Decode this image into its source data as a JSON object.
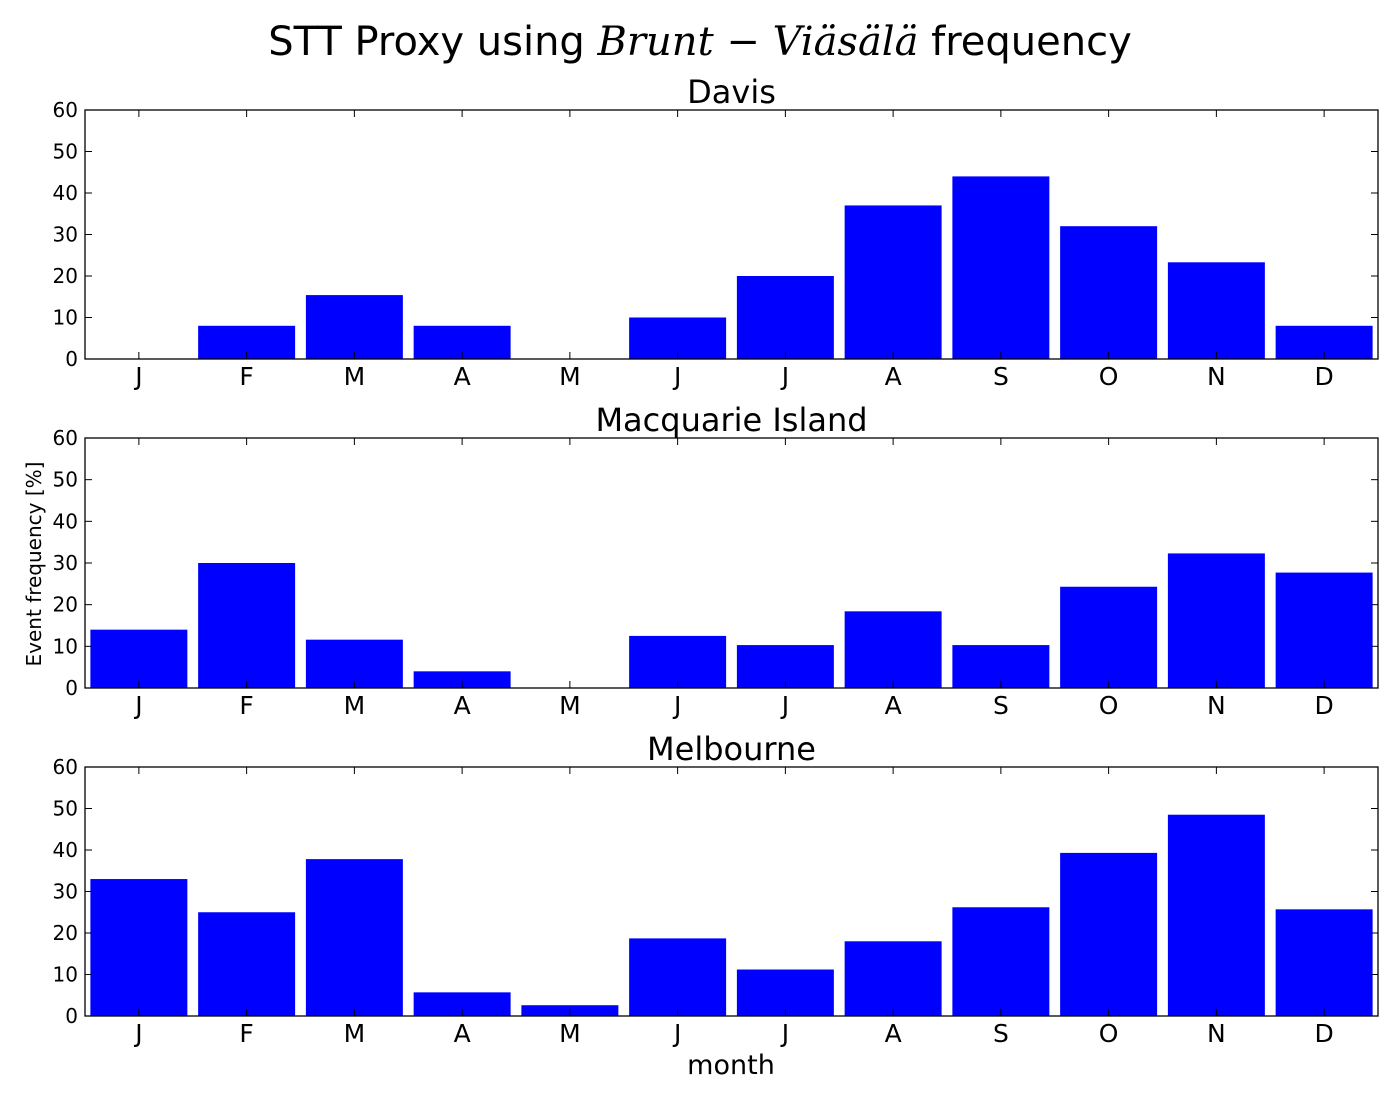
{
  "title_prefix": "STT Proxy using ",
  "title_math": "Brunt − Viäsälä",
  "title_suffix": " frequency",
  "xlabel": "month",
  "ylabel": "Event frequency [%]",
  "bar_color": "#0000ff",
  "chart_data": [
    {
      "type": "bar",
      "title": "Davis",
      "categories": [
        "J",
        "F",
        "M",
        "A",
        "M",
        "J",
        "J",
        "A",
        "S",
        "O",
        "N",
        "D"
      ],
      "values": [
        0,
        8,
        15.4,
        8,
        0,
        10,
        20,
        37,
        44,
        32,
        23.3,
        8
      ],
      "ylim": [
        0,
        60
      ],
      "yticks": [
        0,
        10,
        20,
        30,
        40,
        50,
        60
      ]
    },
    {
      "type": "bar",
      "title": "Macquarie Island",
      "categories": [
        "J",
        "F",
        "M",
        "A",
        "M",
        "J",
        "J",
        "A",
        "S",
        "O",
        "N",
        "D"
      ],
      "values": [
        14,
        30,
        11.6,
        4,
        0,
        12.5,
        10.3,
        18.4,
        10.3,
        24.3,
        32.3,
        27.7
      ],
      "ylim": [
        0,
        60
      ],
      "yticks": [
        0,
        10,
        20,
        30,
        40,
        50,
        60
      ]
    },
    {
      "type": "bar",
      "title": "Melbourne",
      "categories": [
        "J",
        "F",
        "M",
        "A",
        "M",
        "J",
        "J",
        "A",
        "S",
        "O",
        "N",
        "D"
      ],
      "values": [
        33,
        25,
        37.8,
        5.7,
        2.6,
        18.7,
        11.2,
        18,
        26.2,
        39.3,
        48.5,
        25.7
      ],
      "ylim": [
        0,
        60
      ],
      "yticks": [
        0,
        10,
        20,
        30,
        40,
        50,
        60
      ]
    }
  ]
}
